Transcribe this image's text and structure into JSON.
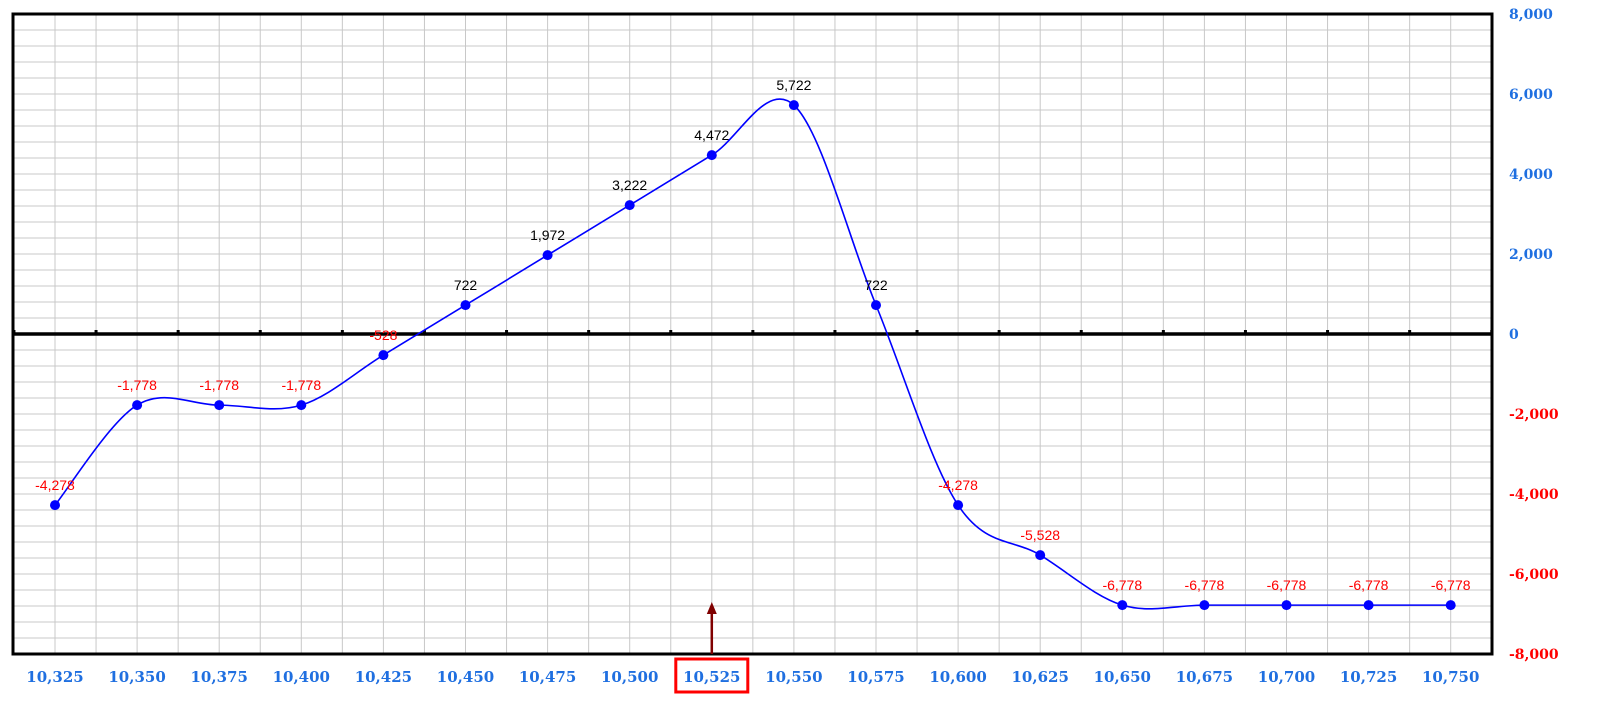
{
  "chart_data": {
    "type": "line",
    "title": "",
    "xlabel": "",
    "ylabel": "",
    "x": [
      10325,
      10350,
      10375,
      10400,
      10425,
      10450,
      10475,
      10500,
      10525,
      10550,
      10575,
      10600,
      10625,
      10650,
      10675,
      10700,
      10725,
      10750
    ],
    "x_labels": [
      "10,325",
      "10,350",
      "10,375",
      "10,400",
      "10,425",
      "10,450",
      "10,475",
      "10,500",
      "10,525",
      "10,550",
      "10,575",
      "10,600",
      "10,625",
      "10,650",
      "10,675",
      "10,700",
      "10,725",
      "10,750"
    ],
    "series": [
      {
        "values": [
          -4278,
          -1778,
          -1778,
          -1778,
          -528,
          722,
          1972,
          3222,
          4472,
          5722,
          722,
          -4278,
          -5528,
          -6778,
          -6778,
          -6778,
          -6778,
          -6778
        ],
        "labels": [
          "-4,278",
          "-1,778",
          "-1,778",
          "-1,778",
          "-528",
          "722",
          "1,972",
          "3,222",
          "4,472",
          "5,722",
          "722",
          "-4,278",
          "-5,528",
          "-6,778",
          "-6,778",
          "-6,778",
          "-6,778",
          "-6,778"
        ]
      }
    ],
    "xlim": [
      10325,
      10750
    ],
    "ylim": [
      -8000,
      8000
    ],
    "yticks": [
      8000,
      6000,
      4000,
      2000,
      0,
      -2000,
      -4000,
      -6000,
      -8000
    ],
    "ytick_labels": [
      "8,000",
      "6,000",
      "4,000",
      "2,000",
      "0",
      "-2,000",
      "-4,000",
      "-6,000",
      "-8,000"
    ],
    "y_axis_side": "right",
    "grid": true,
    "legend": "none",
    "highlight": {
      "x": 10525,
      "label": "10,525",
      "marker": "arrow-up"
    },
    "colors": {
      "line": "#0000ff",
      "point": "#0000ff",
      "positive_label": "#000000",
      "negative_label": "#ff0000",
      "positive_tick": "#1f6fe0",
      "negative_tick": "#ff0000",
      "x_tick": "#1f6fe0",
      "grid": "#c8c8c8",
      "axis": "#000000",
      "highlight_box": "#ff0000",
      "arrow": "#800000"
    }
  }
}
